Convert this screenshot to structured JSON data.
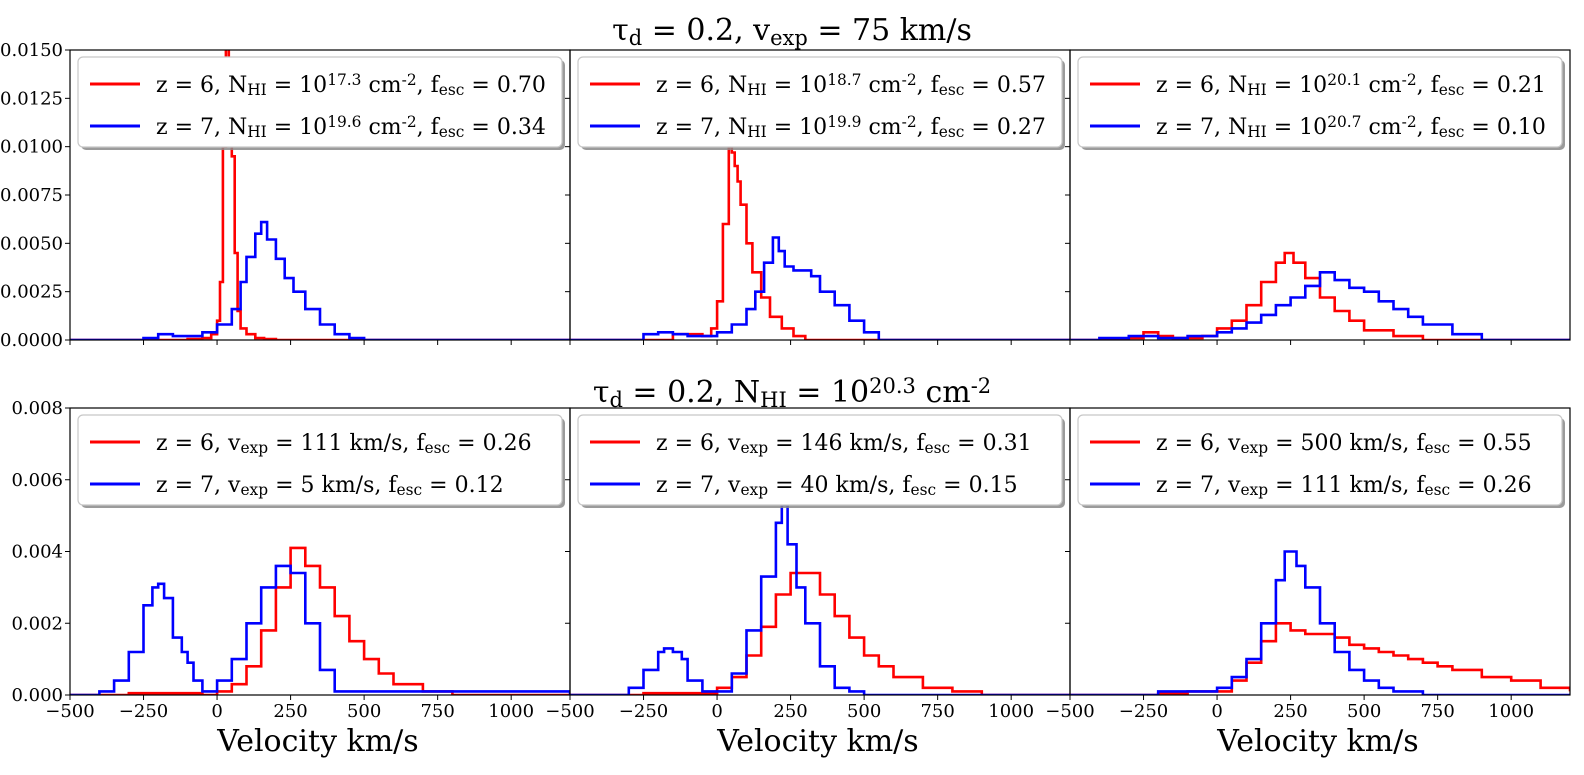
{
  "figure": {
    "row_titles": [
      "τ_d = 0.2, v_exp = 75 km/s",
      "τ_d = 0.2, N_HI = 10^20.3 cm^-2"
    ]
  },
  "colors": {
    "red": "#ff0000",
    "blue": "#0000ff"
  },
  "chart_data": [
    {
      "type": "line",
      "row": 0,
      "col": 0,
      "ylim": [
        0,
        0.015
      ],
      "yticks": [
        "0.0000",
        "0.0025",
        "0.0050",
        "0.0075",
        "0.0100",
        "0.0125",
        "0.0150"
      ],
      "xlim": [
        -500,
        1200
      ],
      "xticks": [
        "−500",
        "−250",
        "0",
        "250",
        "500",
        "750",
        "1000"
      ],
      "xlabel": "Velocity km/s",
      "legend": [
        {
          "color": "red",
          "text": "z = 6, N_HI = 10^17.3 cm^-2, f_esc = 0.70"
        },
        {
          "color": "blue",
          "text": "z = 7, N_HI = 10^19.6 cm^-2, f_esc = 0.34"
        }
      ],
      "series": [
        {
          "name": "z=6",
          "color": "red",
          "x": [
            -500,
            -250,
            -100,
            -50,
            -20,
            0,
            10,
            20,
            30,
            40,
            50,
            60,
            70,
            80,
            100,
            130,
            160,
            200,
            300,
            1200
          ],
          "y": [
            0,
            0,
            5e-05,
            0.0001,
            0.0003,
            0.001,
            0.003,
            0.01,
            0.016,
            0.013,
            0.0095,
            0.0045,
            0.0015,
            0.0006,
            0.0003,
            0.0001,
            5e-05,
            0,
            0,
            0
          ]
        },
        {
          "name": "z=7",
          "color": "blue",
          "x": [
            -500,
            -300,
            -250,
            -200,
            -150,
            -100,
            -50,
            0,
            50,
            80,
            100,
            130,
            150,
            170,
            200,
            230,
            260,
            300,
            350,
            400,
            450,
            500,
            1200
          ],
          "y": [
            0,
            0,
            0.0001,
            0.0003,
            0.0002,
            0.0002,
            0.0004,
            0.0008,
            0.0016,
            0.003,
            0.0043,
            0.0055,
            0.0061,
            0.0052,
            0.0042,
            0.0032,
            0.0025,
            0.0016,
            0.0008,
            0.0003,
            0.0001,
            0,
            0
          ]
        }
      ]
    },
    {
      "type": "line",
      "row": 0,
      "col": 1,
      "ylim": [
        0,
        0.015
      ],
      "xlim": [
        -500,
        1200
      ],
      "xticks": [
        "−500",
        "−250",
        "0",
        "250",
        "500",
        "750",
        "1000"
      ],
      "xlabel": "Velocity km/s",
      "legend": [
        {
          "color": "red",
          "text": "z = 6, N_HI = 10^18.7 cm^-2, f_esc = 0.57"
        },
        {
          "color": "blue",
          "text": "z = 7, N_HI = 10^19.9 cm^-2, f_esc = 0.27"
        }
      ],
      "series": [
        {
          "name": "z=6",
          "color": "red",
          "x": [
            -500,
            -250,
            -150,
            -50,
            -20,
            0,
            20,
            40,
            50,
            60,
            70,
            80,
            100,
            120,
            150,
            180,
            220,
            260,
            300,
            1200
          ],
          "y": [
            0,
            0,
            0.0003,
            0.0002,
            0.0006,
            0.002,
            0.006,
            0.01,
            0.0097,
            0.009,
            0.0082,
            0.007,
            0.005,
            0.0035,
            0.0022,
            0.0012,
            0.0006,
            0.0002,
            0,
            0
          ]
        },
        {
          "name": "z=7",
          "color": "blue",
          "x": [
            -500,
            -250,
            -200,
            -150,
            -100,
            -50,
            0,
            50,
            100,
            130,
            160,
            190,
            210,
            230,
            260,
            290,
            320,
            350,
            400,
            450,
            500,
            550,
            1200
          ],
          "y": [
            0,
            0.0003,
            0.0004,
            0.0003,
            0.0002,
            0.0002,
            0.0004,
            0.0008,
            0.0016,
            0.0025,
            0.004,
            0.0053,
            0.0046,
            0.0038,
            0.0036,
            0.0036,
            0.0033,
            0.0025,
            0.0018,
            0.001,
            0.0004,
            0,
            0
          ]
        }
      ]
    },
    {
      "type": "line",
      "row": 0,
      "col": 2,
      "ylim": [
        0,
        0.015
      ],
      "xlim": [
        -500,
        1200
      ],
      "xticks": [
        "−500",
        "−250",
        "0",
        "250",
        "500",
        "750",
        "1000"
      ],
      "xlabel": "Velocity km/s",
      "legend": [
        {
          "color": "red",
          "text": "z = 6, N_HI = 10^20.1 cm^-2, f_esc = 0.21"
        },
        {
          "color": "blue",
          "text": "z = 7, N_HI = 10^20.7 cm^-2, f_esc = 0.10"
        }
      ],
      "series": [
        {
          "name": "z=6",
          "color": "red",
          "x": [
            -500,
            -400,
            -300,
            -250,
            -200,
            -150,
            -50,
            0,
            50,
            100,
            150,
            200,
            230,
            260,
            300,
            350,
            400,
            450,
            500,
            600,
            700,
            1200
          ],
          "y": [
            0,
            0,
            0.0001,
            0.0004,
            0.0002,
            0.0001,
            0.0002,
            0.0006,
            0.001,
            0.0018,
            0.003,
            0.004,
            0.0045,
            0.004,
            0.0032,
            0.0022,
            0.0015,
            0.001,
            0.0005,
            0.0002,
            0,
            0
          ]
        },
        {
          "name": "z=7",
          "color": "blue",
          "x": [
            -500,
            -400,
            -300,
            -200,
            -100,
            0,
            50,
            100,
            150,
            200,
            250,
            300,
            350,
            400,
            450,
            500,
            550,
            600,
            650,
            700,
            800,
            900,
            1200
          ],
          "y": [
            0,
            0.0001,
            0.0002,
            0.0001,
            0.0002,
            0.0004,
            0.0006,
            0.0009,
            0.0013,
            0.0018,
            0.0022,
            0.0028,
            0.0035,
            0.0031,
            0.0027,
            0.0025,
            0.002,
            0.0016,
            0.0012,
            0.0008,
            0.0003,
            0,
            0
          ]
        }
      ]
    },
    {
      "type": "line",
      "row": 1,
      "col": 0,
      "ylim": [
        0,
        0.008
      ],
      "yticks": [
        "0.000",
        "0.002",
        "0.004",
        "0.006",
        "0.008"
      ],
      "xlim": [
        -500,
        1200
      ],
      "xticks": [
        "−500",
        "−250",
        "0",
        "250",
        "500",
        "750",
        "1000"
      ],
      "xlabel": "Velocity km/s",
      "legend": [
        {
          "color": "red",
          "text": "z = 6, v_exp = 111 km/s, f_esc = 0.26"
        },
        {
          "color": "blue",
          "text": "z = 7, v_exp = 5 km/s, f_esc = 0.12"
        }
      ],
      "series": [
        {
          "name": "z=6",
          "color": "red",
          "x": [
            -500,
            -400,
            -300,
            -200,
            -100,
            -50,
            0,
            50,
            100,
            150,
            200,
            250,
            300,
            350,
            400,
            450,
            500,
            550,
            600,
            700,
            800,
            1200
          ],
          "y": [
            0,
            0,
            5e-05,
            5e-05,
            5e-05,
            0,
            0.0001,
            0.0003,
            0.0008,
            0.0018,
            0.003,
            0.0041,
            0.0036,
            0.003,
            0.0022,
            0.0015,
            0.001,
            0.0006,
            0.0003,
            0.0001,
            0,
            0
          ]
        },
        {
          "name": "z=7",
          "color": "blue",
          "x": [
            -500,
            -450,
            -400,
            -350,
            -300,
            -250,
            -220,
            -200,
            -180,
            -150,
            -120,
            -100,
            -80,
            -50,
            0,
            50,
            100,
            150,
            200,
            250,
            300,
            350,
            400,
            1200
          ],
          "y": [
            0,
            0,
            0.0001,
            0.0004,
            0.0012,
            0.0025,
            0.003,
            0.0031,
            0.0027,
            0.0016,
            0.0012,
            0.0009,
            0.0004,
            0.0001,
            0.0004,
            0.001,
            0.002,
            0.003,
            0.0036,
            0.0034,
            0.002,
            0.0007,
            0.0001,
            0
          ]
        }
      ]
    },
    {
      "type": "line",
      "row": 1,
      "col": 1,
      "ylim": [
        0,
        0.008
      ],
      "xlim": [
        -500,
        1200
      ],
      "xticks": [
        "−500",
        "−250",
        "0",
        "250",
        "500",
        "750",
        "1000"
      ],
      "xlabel": "Velocity km/s",
      "legend": [
        {
          "color": "red",
          "text": "z = 6, v_exp = 146 km/s, f_esc = 0.31"
        },
        {
          "color": "blue",
          "text": "z = 7, v_exp = 40 km/s, f_esc = 0.15"
        }
      ],
      "series": [
        {
          "name": "z=6",
          "color": "red",
          "x": [
            -500,
            -300,
            -250,
            -100,
            0,
            50,
            100,
            150,
            200,
            250,
            300,
            350,
            400,
            450,
            500,
            550,
            600,
            700,
            800,
            900,
            1200
          ],
          "y": [
            0,
            0,
            5e-05,
            5e-05,
            0.0002,
            0.0005,
            0.0011,
            0.0019,
            0.0028,
            0.0034,
            0.0034,
            0.0028,
            0.0022,
            0.0016,
            0.0011,
            0.0008,
            0.0005,
            0.0002,
            0.0001,
            0,
            0
          ]
        },
        {
          "name": "z=7",
          "color": "blue",
          "x": [
            -500,
            -400,
            -300,
            -250,
            -200,
            -180,
            -150,
            -120,
            -100,
            -50,
            0,
            50,
            100,
            150,
            200,
            220,
            240,
            270,
            300,
            350,
            400,
            450,
            500,
            1200
          ],
          "y": [
            0,
            0,
            0.0002,
            0.0007,
            0.0012,
            0.0013,
            0.0012,
            0.001,
            0.0004,
            0.0001,
            0.0001,
            0.0006,
            0.0018,
            0.0033,
            0.0048,
            0.0053,
            0.0042,
            0.003,
            0.002,
            0.0008,
            0.0002,
            0.0001,
            0,
            0
          ]
        }
      ]
    },
    {
      "type": "line",
      "row": 1,
      "col": 2,
      "ylim": [
        0,
        0.008
      ],
      "xlim": [
        -500,
        1200
      ],
      "xticks": [
        "−500",
        "−250",
        "0",
        "250",
        "500",
        "750",
        "1000"
      ],
      "xlabel": "Velocity km/s",
      "legend": [
        {
          "color": "red",
          "text": "z = 6, v_exp = 500 km/s, f_esc = 0.55"
        },
        {
          "color": "blue",
          "text": "z = 7, v_exp = 111 km/s, f_esc = 0.26"
        }
      ],
      "series": [
        {
          "name": "z=6",
          "color": "red",
          "x": [
            -500,
            -300,
            -200,
            -100,
            0,
            50,
            100,
            150,
            200,
            250,
            300,
            350,
            400,
            450,
            500,
            550,
            600,
            650,
            700,
            750,
            800,
            900,
            1000,
            1100,
            1200
          ],
          "y": [
            0,
            0,
            5e-05,
            0.0001,
            0.0001,
            0.0004,
            0.0009,
            0.0015,
            0.002,
            0.0018,
            0.0017,
            0.0017,
            0.0016,
            0.0014,
            0.0013,
            0.0012,
            0.0011,
            0.001,
            0.0009,
            0.0008,
            0.0007,
            0.0005,
            0.0004,
            0.0002,
            0.0001
          ]
        },
        {
          "name": "z=7",
          "color": "blue",
          "x": [
            -500,
            -300,
            -200,
            -100,
            0,
            50,
            100,
            150,
            200,
            230,
            250,
            270,
            300,
            350,
            400,
            450,
            500,
            550,
            600,
            700,
            1200
          ],
          "y": [
            0,
            0,
            0.0001,
            0.0001,
            0.0002,
            0.0005,
            0.001,
            0.002,
            0.0032,
            0.004,
            0.004,
            0.0036,
            0.003,
            0.002,
            0.0012,
            0.0007,
            0.0004,
            0.0002,
            0.0001,
            0,
            0
          ]
        }
      ]
    }
  ]
}
